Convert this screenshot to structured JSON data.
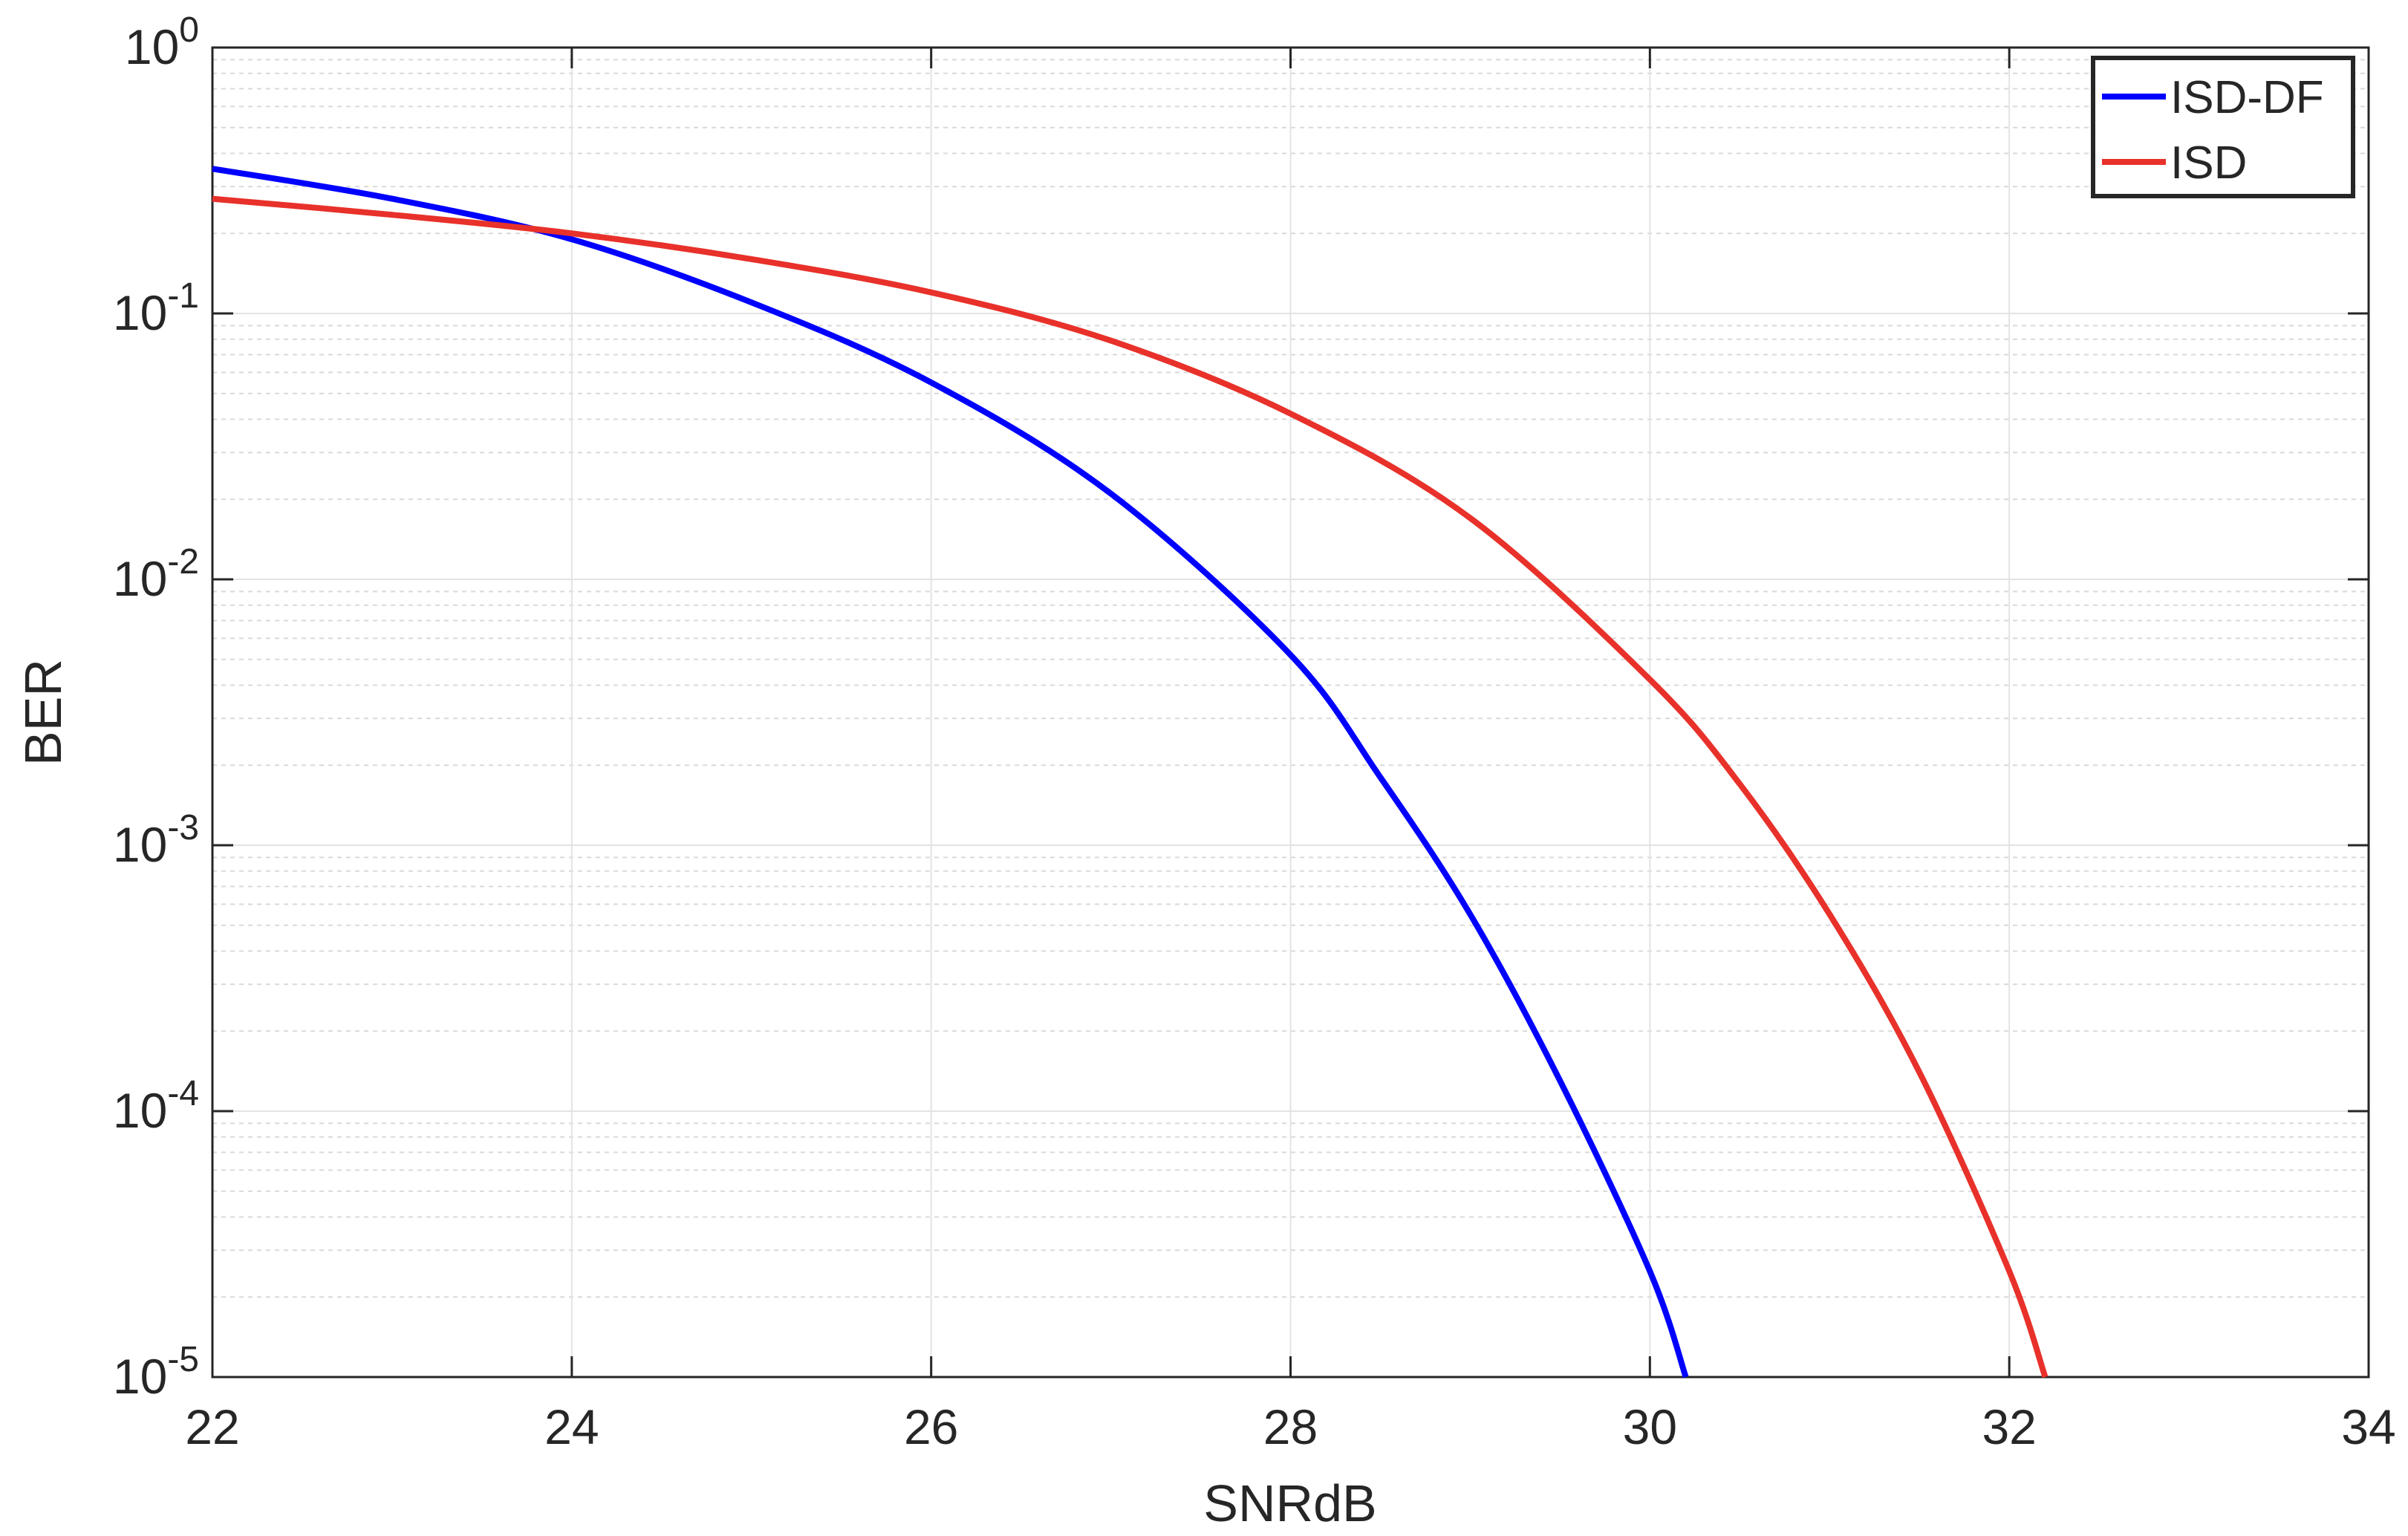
{
  "chart_data": {
    "type": "line",
    "xlabel": "SNRdB",
    "ylabel": "BER",
    "xlim": [
      22,
      34
    ],
    "ylim": [
      1e-05,
      1
    ],
    "yscale": "log",
    "grid": true,
    "legend_position": "top-right",
    "x_ticks": [
      "22",
      "24",
      "26",
      "28",
      "30",
      "32",
      "34"
    ],
    "y_ticks": [
      {
        "base": "10",
        "exp": "0",
        "value": 1
      },
      {
        "base": "10",
        "exp": "-1",
        "value": 0.1
      },
      {
        "base": "10",
        "exp": "-2",
        "value": 0.01
      },
      {
        "base": "10",
        "exp": "-3",
        "value": 0.001
      },
      {
        "base": "10",
        "exp": "-4",
        "value": 0.0001
      },
      {
        "base": "10",
        "exp": "-5",
        "value": 1e-05
      }
    ],
    "series": [
      {
        "name": "ISD-DF",
        "color": "#0000ff",
        "x": [
          22,
          23,
          24,
          25,
          26,
          27,
          28,
          28.5,
          29,
          29.5,
          30,
          30.2
        ],
        "y": [
          0.35,
          0.27,
          0.19,
          0.11,
          0.055,
          0.021,
          0.0052,
          0.0018,
          0.00055,
          0.00013,
          2.5e-05,
          1e-05
        ]
      },
      {
        "name": "ISD",
        "color": "#e8312a",
        "x": [
          22,
          23,
          24,
          25,
          26,
          27,
          28,
          29,
          30,
          30.5,
          31,
          31.5,
          32,
          32.2
        ],
        "y": [
          0.27,
          0.235,
          0.2,
          0.16,
          0.12,
          0.079,
          0.042,
          0.017,
          0.0042,
          0.0017,
          0.00055,
          0.00014,
          2.5e-05,
          1e-05
        ]
      }
    ]
  }
}
